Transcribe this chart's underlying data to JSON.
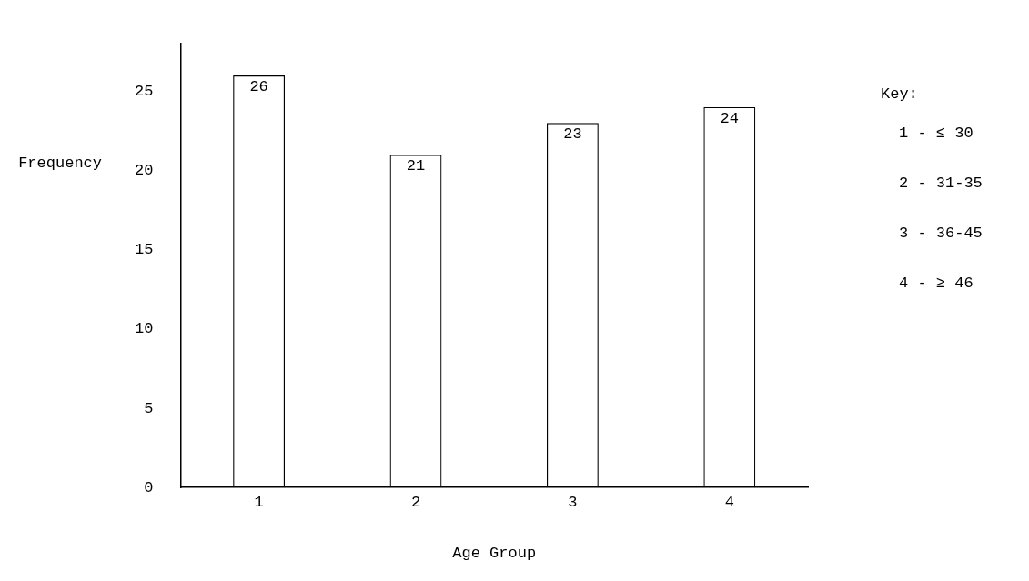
{
  "chart_data": {
    "type": "bar",
    "xlabel": "Age Group",
    "ylabel": "Frequency",
    "categories": [
      "1",
      "2",
      "3",
      "4"
    ],
    "values": [
      26,
      21,
      23,
      24
    ],
    "color": "#000000",
    "ylim": [
      0,
      28
    ],
    "yticks": [
      0,
      5,
      10,
      15,
      20,
      25
    ],
    "grid": false,
    "legend": false,
    "data_labels": true,
    "annotations": [
      "Key:",
      "1 - ≤ 30",
      "2 - 31-35",
      "3 - 36-45",
      "4 - ≥ 46"
    ]
  }
}
